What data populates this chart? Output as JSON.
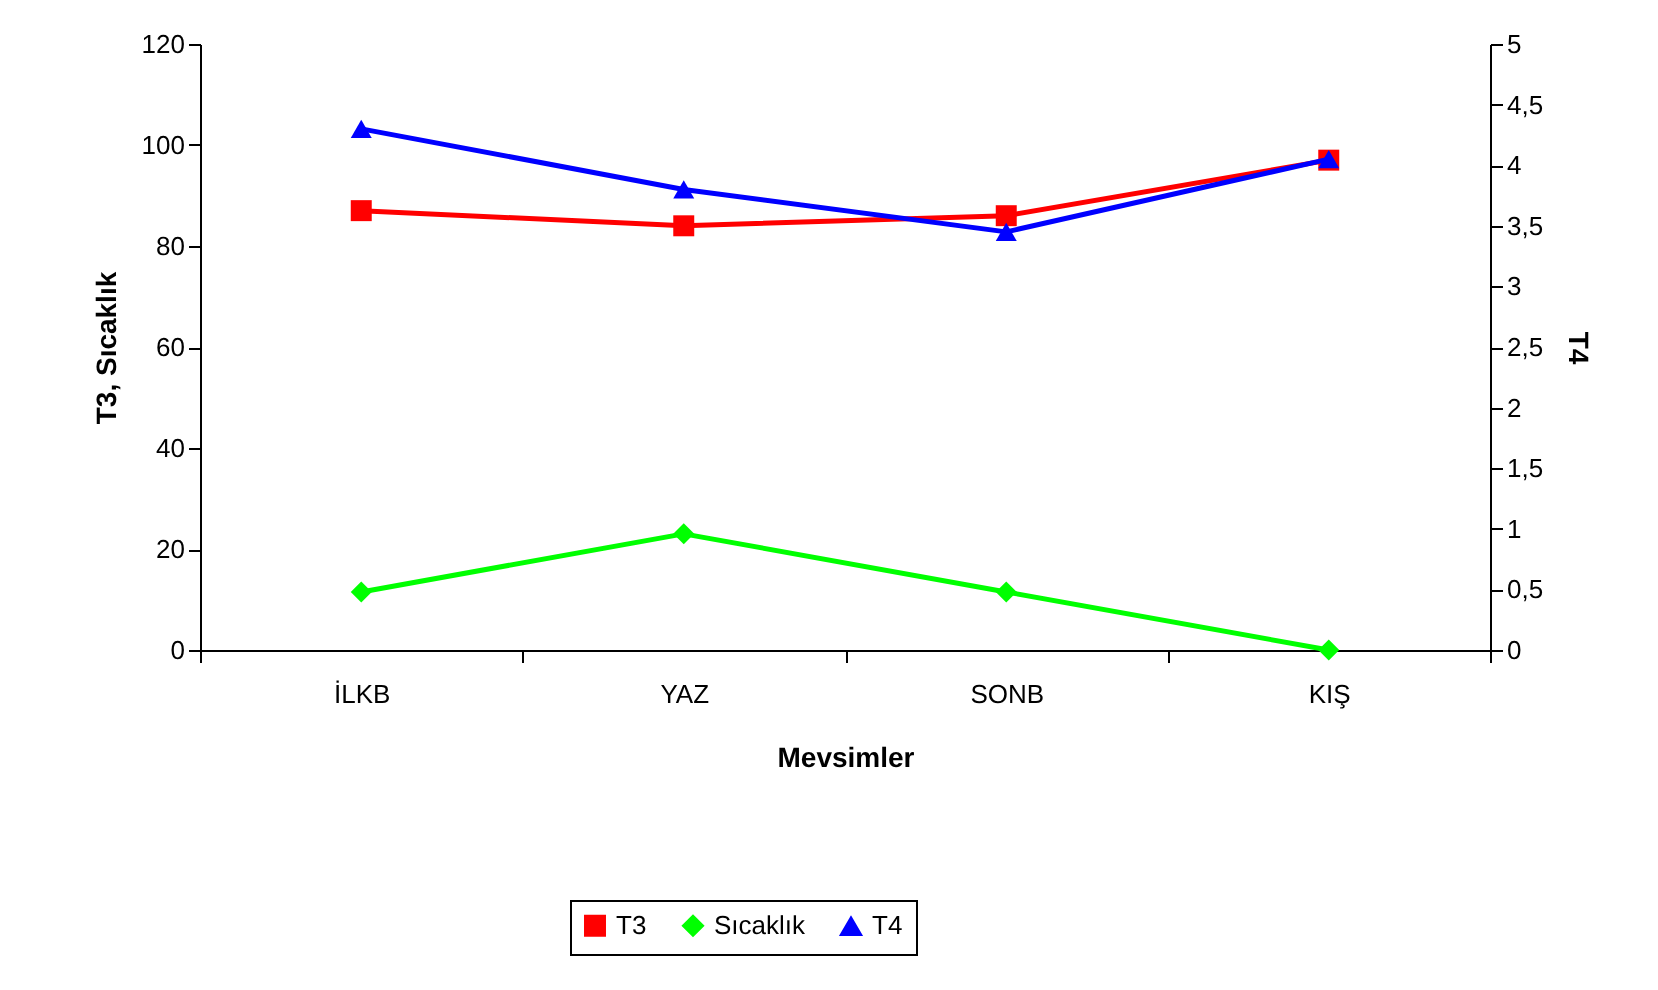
{
  "chart_data": {
    "type": "line",
    "xlabel": "Mevsimler",
    "ylabel": "T3, Sıcaklık",
    "y2label": "T4",
    "categories": [
      "İLKB",
      "YAZ",
      "SONB",
      "KIŞ"
    ],
    "series": [
      {
        "name": "T3",
        "color": "#ff0000",
        "marker": "square",
        "values": [
          87,
          84,
          86,
          97
        ]
      },
      {
        "name": "Sıcaklık",
        "color": "#00ff00",
        "marker": "diamond",
        "values": [
          11.5,
          23,
          11.5,
          0
        ]
      },
      {
        "name": "T4",
        "color": "#0000ff",
        "marker": "triangle",
        "axis": "y2",
        "values": [
          4.3,
          3.8,
          3.45,
          4.05
        ]
      }
    ],
    "ylim": [
      0,
      120
    ],
    "yticks": [
      0,
      20,
      40,
      60,
      80,
      100,
      120
    ],
    "y2lim": [
      0,
      5
    ],
    "y2ticks": [
      0,
      {
        "value": 0.5,
        "label": "0,5"
      },
      1,
      {
        "value": 1.5,
        "label": "1,5"
      },
      2,
      {
        "value": 2.5,
        "label": "2,5"
      },
      3,
      {
        "value": 3.5,
        "label": "3,5"
      },
      4,
      {
        "value": 4.5,
        "label": "4,5"
      },
      5
    ],
    "grid": false,
    "legend": "bottom",
    "line_style": "solid"
  }
}
